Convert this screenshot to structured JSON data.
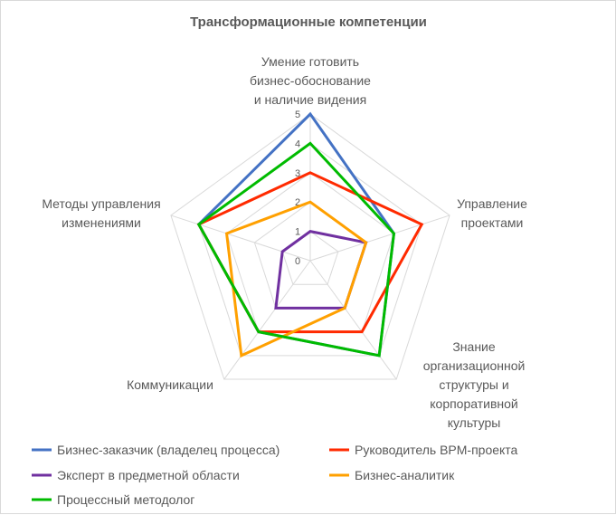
{
  "chart_data": {
    "type": "radar",
    "title": "Трансформационные компетенции",
    "categories": [
      [
        "Умение готовить",
        "бизнес-обоснование",
        "и наличие видения"
      ],
      [
        "Управление",
        "проектами"
      ],
      [
        "Знание",
        "организационной",
        "структуры и",
        "корпоративной",
        "культуры"
      ],
      [
        "Коммуникации"
      ],
      [
        "Методы управления",
        "изменениями"
      ]
    ],
    "rlim": [
      0,
      5
    ],
    "ticks": [
      "0",
      "1",
      "2",
      "3",
      "4",
      "5"
    ],
    "grid": true,
    "legend_position": "bottom",
    "series": [
      {
        "name": "Бизнес-заказчик (владелец процесса)",
        "color": "#4472c4",
        "values": [
          5,
          3,
          4,
          3,
          4
        ]
      },
      {
        "name": "Руководитель BPM-проекта",
        "color": "#ff2a00",
        "values": [
          3,
          4,
          3,
          3,
          4
        ]
      },
      {
        "name": "Эксперт в предметной области",
        "color": "#7030a0",
        "values": [
          1,
          2,
          2,
          2,
          1
        ]
      },
      {
        "name": "Бизнес-аналитик",
        "color": "#ffa000",
        "values": [
          2,
          2,
          2,
          4,
          3
        ]
      },
      {
        "name": "Процессный методолог",
        "color": "#00bb00",
        "values": [
          4,
          3,
          4,
          3,
          4
        ]
      }
    ]
  }
}
